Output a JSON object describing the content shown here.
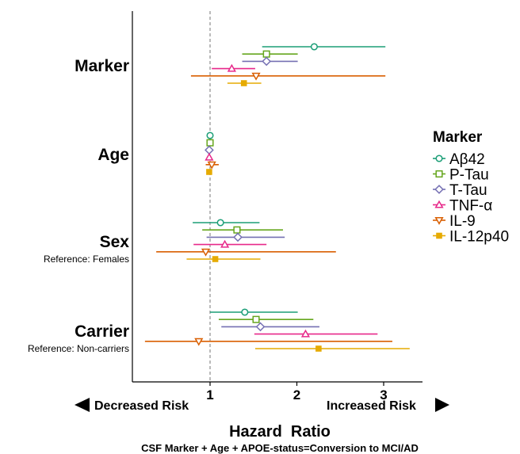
{
  "chart_data": {
    "type": "forest",
    "xlabel": "Hazard  Ratio",
    "subtitle": "CSF Marker + Age + APOE-status=Conversion to MCI/AD",
    "xlim": [
      0.1,
      3.45
    ],
    "xticks": [
      1,
      2,
      3
    ],
    "reference_line": 1,
    "grid": false,
    "legend_position": "right",
    "legend_title": "Marker",
    "risk_left": "Decreased Risk",
    "risk_right": "Increased Risk",
    "categories": [
      {
        "name": "Marker",
        "reference": ""
      },
      {
        "name": "Age",
        "reference": ""
      },
      {
        "name": "Sex",
        "reference": "Reference: Females"
      },
      {
        "name": "Carrier",
        "reference": "Reference: Non-carriers"
      }
    ],
    "series": [
      {
        "name": "Aβ42",
        "color": "#1b9e77",
        "shape": "circle",
        "hr": [
          2.2,
          1.0,
          1.12,
          1.4
        ],
        "lower": [
          1.6,
          1.0,
          0.8,
          1.0
        ],
        "upper": [
          3.02,
          1.0,
          1.57,
          2.01
        ]
      },
      {
        "name": "P-Tau",
        "color": "#66a61e",
        "shape": "square",
        "hr": [
          1.65,
          1.0,
          1.31,
          1.53
        ],
        "lower": [
          1.37,
          0.99,
          0.91,
          1.1
        ],
        "upper": [
          2.01,
          1.01,
          1.84,
          2.19
        ]
      },
      {
        "name": "T-Tau",
        "color": "#7570b3",
        "shape": "diamond",
        "hr": [
          1.65,
          0.99,
          1.32,
          1.58
        ],
        "lower": [
          1.37,
          0.99,
          0.96,
          1.13
        ],
        "upper": [
          2.01,
          1.0,
          1.86,
          2.26
        ]
      },
      {
        "name": "TNF-α",
        "color": "#e7298a",
        "shape": "triangle-up",
        "hr": [
          1.25,
          0.99,
          1.17,
          2.1
        ],
        "lower": [
          1.02,
          0.98,
          0.81,
          1.51
        ],
        "upper": [
          1.52,
          1.0,
          1.65,
          2.93
        ]
      },
      {
        "name": "IL-9",
        "color": "#d95f02",
        "shape": "triangle-down",
        "hr": [
          1.53,
          1.02,
          0.95,
          0.87
        ],
        "lower": [
          0.78,
          0.95,
          0.38,
          0.25
        ],
        "upper": [
          3.02,
          1.1,
          2.45,
          3.1
        ]
      },
      {
        "name": "IL-12p40",
        "color": "#e6ab02",
        "shape": "filled-square",
        "hr": [
          1.39,
          0.99,
          1.06,
          2.25
        ],
        "lower": [
          1.2,
          0.98,
          0.73,
          1.52
        ],
        "upper": [
          1.59,
          1.0,
          1.58,
          3.3
        ]
      }
    ]
  }
}
